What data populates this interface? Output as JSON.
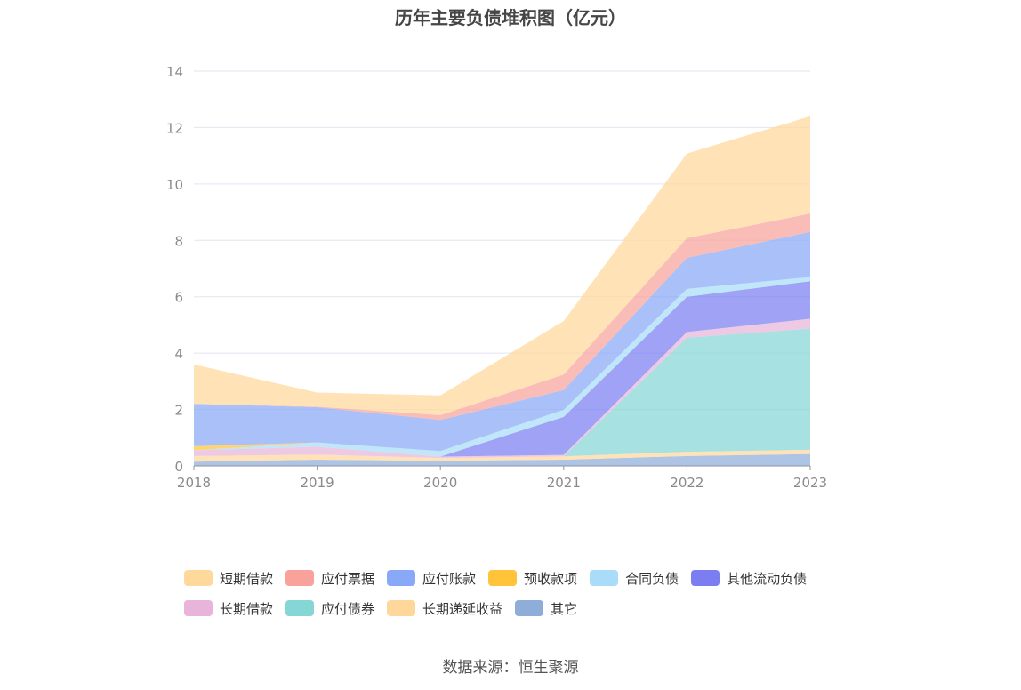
{
  "page_title": "历年主要负债堆积图（亿元）",
  "source": "数据来源：恒生聚源",
  "chart_data": {
    "type": "area",
    "stacked": true,
    "title": "历年主要负债堆积图（亿元）",
    "categories": [
      "2018",
      "2019",
      "2020",
      "2021",
      "2022",
      "2023"
    ],
    "ylim": [
      0,
      14
    ],
    "yticks": [
      "0",
      "2",
      "4",
      "6",
      "8",
      "10",
      "12",
      "14"
    ],
    "grid": true,
    "legend_position": "bottom",
    "series": [
      {
        "name": "其它",
        "color": "#8fadd9",
        "values": [
          0.15,
          0.22,
          0.18,
          0.22,
          0.35,
          0.42
        ]
      },
      {
        "name": "长期递延收益",
        "color": "#ffd79b",
        "values": [
          0.2,
          0.18,
          0.1,
          0.12,
          0.15,
          0.15
        ]
      },
      {
        "name": "应付债券",
        "color": "#86d6d6",
        "values": [
          0,
          0,
          0,
          0,
          4.05,
          4.3
        ]
      },
      {
        "name": "长期借款",
        "color": "#e8b4d9",
        "values": [
          0.2,
          0.28,
          0.05,
          0.05,
          0.2,
          0.35
        ]
      },
      {
        "name": "其他流动负债",
        "color": "#7a7ef1",
        "values": [
          0,
          0,
          0,
          1.35,
          1.25,
          1.33
        ]
      },
      {
        "name": "合同负债",
        "color": "#a8dcf8",
        "values": [
          0,
          0.15,
          0.2,
          0.25,
          0.28,
          0.15
        ]
      },
      {
        "name": "预收款项",
        "color": "#ffc43a",
        "values": [
          0.15,
          0,
          0,
          0,
          0,
          0
        ]
      },
      {
        "name": "应付账款",
        "color": "#89a8f7",
        "values": [
          1.5,
          1.25,
          1.1,
          0.7,
          1.1,
          1.6
        ]
      },
      {
        "name": "应付票据",
        "color": "#f8a29b",
        "values": [
          0,
          0.02,
          0.17,
          0.55,
          0.7,
          0.65
        ]
      },
      {
        "name": "短期借款",
        "color": "#ffd89b",
        "values": [
          1.4,
          0.5,
          0.7,
          1.9,
          3.0,
          3.45
        ]
      }
    ]
  },
  "legend": {
    "rows": [
      [
        {
          "label": "短期借款",
          "color": "#ffd89b"
        },
        {
          "label": "应付票据",
          "color": "#f8a29b"
        },
        {
          "label": "应付账款",
          "color": "#89a8f7"
        },
        {
          "label": "预收款项",
          "color": "#ffc43a"
        },
        {
          "label": "合同负债",
          "color": "#a8dcf8"
        },
        {
          "label": "其他流动负债",
          "color": "#7a7ef1"
        }
      ],
      [
        {
          "label": "长期借款",
          "color": "#e8b4d9"
        },
        {
          "label": "应付债券",
          "color": "#86d6d6"
        },
        {
          "label": "长期递延收益",
          "color": "#ffd79b"
        },
        {
          "label": "其它",
          "color": "#8fadd9"
        }
      ]
    ]
  }
}
